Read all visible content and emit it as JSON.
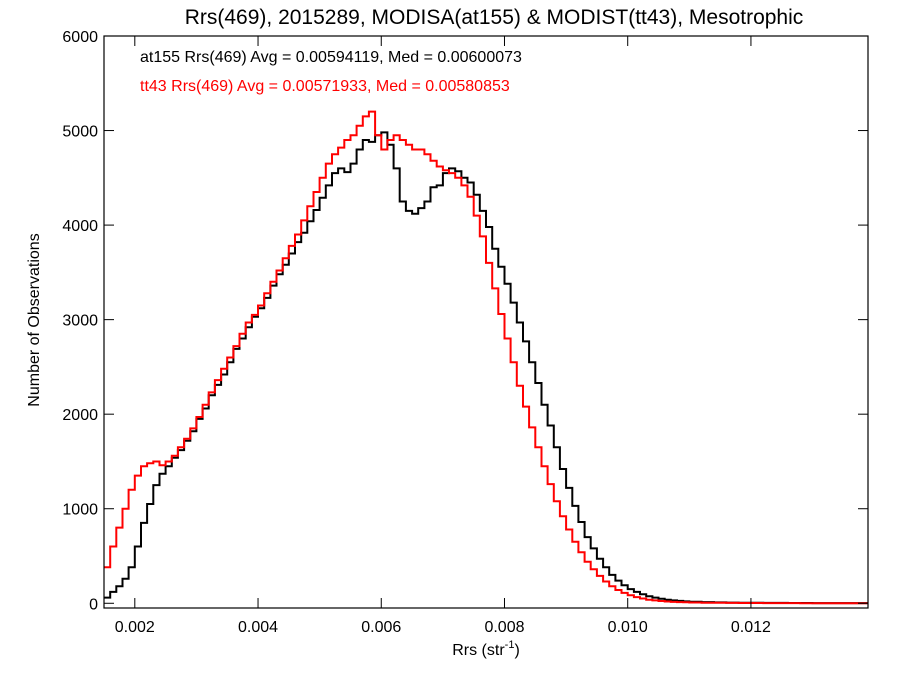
{
  "chart_data": {
    "type": "line",
    "title": "Rrs(469), 2015289, MODISA(at155) & MODIST(tt43), Mesotrophic",
    "xlabel": "Rrs (str",
    "xlabel_sup": "-1",
    "xlabel_close": ")",
    "ylabel": "Number of Observations",
    "xlim": [
      0.0015,
      0.0139
    ],
    "ylim": [
      -50,
      6000
    ],
    "x_ticks": [
      0.002,
      0.004,
      0.006,
      0.008,
      0.01,
      0.012
    ],
    "x_tick_labels": [
      "0.002",
      "0.004",
      "0.006",
      "0.008",
      "0.010",
      "0.012"
    ],
    "y_ticks": [
      0,
      1000,
      2000,
      3000,
      4000,
      5000,
      6000
    ],
    "y_tick_labels": [
      "0",
      "1000",
      "2000",
      "3000",
      "4000",
      "5000",
      "6000"
    ],
    "grid": false,
    "legend": "top-left",
    "annotations": [
      {
        "text": "at155 Rrs(469) Avg = 0.00594119, Med = 0.00600073",
        "color": "#000000"
      },
      {
        "text": "tt43 Rrs(469) Avg = 0.00571933, Med = 0.00580853",
        "color": "#ff0000"
      }
    ],
    "series": [
      {
        "color": "#000000",
        "x": [
          0.0015,
          0.0016,
          0.0017,
          0.0018,
          0.0019,
          0.002,
          0.0021,
          0.0022,
          0.0023,
          0.0024,
          0.0025,
          0.0026,
          0.0027,
          0.0028,
          0.0029,
          0.003,
          0.0031,
          0.0032,
          0.0033,
          0.0034,
          0.0035,
          0.0036,
          0.0037,
          0.0038,
          0.0039,
          0.004,
          0.0041,
          0.0042,
          0.0043,
          0.0044,
          0.0045,
          0.0046,
          0.0047,
          0.0048,
          0.0049,
          0.005,
          0.0051,
          0.0052,
          0.0053,
          0.0054,
          0.0055,
          0.0056,
          0.0057,
          0.0058,
          0.0059,
          0.006,
          0.0061,
          0.0062,
          0.0063,
          0.0064,
          0.0065,
          0.0066,
          0.0067,
          0.0068,
          0.0069,
          0.007,
          0.0071,
          0.0072,
          0.0073,
          0.0074,
          0.0075,
          0.0076,
          0.0077,
          0.0078,
          0.0079,
          0.008,
          0.0081,
          0.0082,
          0.0083,
          0.0084,
          0.0085,
          0.0086,
          0.0087,
          0.0088,
          0.0089,
          0.009,
          0.0091,
          0.0092,
          0.0093,
          0.0094,
          0.0095,
          0.0096,
          0.0097,
          0.0098,
          0.0099,
          0.01,
          0.0101,
          0.0102,
          0.0103,
          0.0104,
          0.0105,
          0.0106,
          0.0107,
          0.0108,
          0.0109,
          0.011,
          0.0112,
          0.0114,
          0.0116,
          0.0118,
          0.012,
          0.0122,
          0.0124,
          0.0126,
          0.0128,
          0.013,
          0.0132,
          0.0134,
          0.0136,
          0.0139
        ],
        "y": [
          60,
          120,
          180,
          260,
          380,
          600,
          850,
          1050,
          1250,
          1370,
          1450,
          1540,
          1620,
          1720,
          1820,
          1950,
          2060,
          2200,
          2310,
          2420,
          2550,
          2690,
          2800,
          2920,
          3030,
          3120,
          3230,
          3360,
          3480,
          3580,
          3700,
          3820,
          3920,
          4040,
          4160,
          4290,
          4420,
          4550,
          4600,
          4560,
          4650,
          4800,
          4900,
          4880,
          4950,
          4980,
          4850,
          4600,
          4250,
          4150,
          4120,
          4180,
          4250,
          4400,
          4420,
          4550,
          4600,
          4570,
          4500,
          4450,
          4320,
          4150,
          3980,
          3750,
          3560,
          3380,
          3180,
          2970,
          2770,
          2550,
          2330,
          2100,
          1880,
          1650,
          1420,
          1220,
          1030,
          860,
          700,
          580,
          470,
          380,
          300,
          240,
          190,
          150,
          120,
          95,
          75,
          60,
          48,
          38,
          30,
          25,
          20,
          16,
          12,
          9,
          7,
          6,
          5,
          4,
          4,
          3,
          3,
          2,
          2,
          2,
          2,
          2
        ]
      },
      {
        "color": "#ff0000",
        "x": [
          0.0015,
          0.0016,
          0.0017,
          0.0018,
          0.0019,
          0.002,
          0.0021,
          0.0022,
          0.0023,
          0.0024,
          0.0025,
          0.0026,
          0.0027,
          0.0028,
          0.0029,
          0.003,
          0.0031,
          0.0032,
          0.0033,
          0.0034,
          0.0035,
          0.0036,
          0.0037,
          0.0038,
          0.0039,
          0.004,
          0.0041,
          0.0042,
          0.0043,
          0.0044,
          0.0045,
          0.0046,
          0.0047,
          0.0048,
          0.0049,
          0.005,
          0.0051,
          0.0052,
          0.0053,
          0.0054,
          0.0055,
          0.0056,
          0.0057,
          0.0058,
          0.0059,
          0.006,
          0.0061,
          0.0062,
          0.0063,
          0.0064,
          0.0065,
          0.0066,
          0.0067,
          0.0068,
          0.0069,
          0.007,
          0.0071,
          0.0072,
          0.0073,
          0.0074,
          0.0075,
          0.0076,
          0.0077,
          0.0078,
          0.0079,
          0.008,
          0.0081,
          0.0082,
          0.0083,
          0.0084,
          0.0085,
          0.0086,
          0.0087,
          0.0088,
          0.0089,
          0.009,
          0.0091,
          0.0092,
          0.0093,
          0.0094,
          0.0095,
          0.0096,
          0.0097,
          0.0098,
          0.0099,
          0.01,
          0.0101,
          0.0102,
          0.0103,
          0.0104,
          0.0105,
          0.0106,
          0.0107,
          0.0108,
          0.0109,
          0.011,
          0.0112,
          0.0114,
          0.0116,
          0.0118,
          0.012,
          0.0122,
          0.0124,
          0.0126,
          0.0128,
          0.013,
          0.0132,
          0.0134,
          0.0136,
          0.0139
        ],
        "y": [
          380,
          600,
          800,
          1000,
          1200,
          1350,
          1450,
          1480,
          1500,
          1460,
          1500,
          1560,
          1650,
          1740,
          1850,
          1970,
          2100,
          2230,
          2360,
          2480,
          2600,
          2720,
          2850,
          2970,
          3050,
          3150,
          3280,
          3400,
          3520,
          3650,
          3780,
          3900,
          4050,
          4200,
          4350,
          4500,
          4650,
          4750,
          4820,
          4900,
          4950,
          5050,
          5150,
          5200,
          4950,
          4800,
          4900,
          4950,
          4900,
          4850,
          4800,
          4800,
          4750,
          4680,
          4620,
          4580,
          4550,
          4500,
          4420,
          4300,
          4100,
          3880,
          3600,
          3330,
          3060,
          2800,
          2550,
          2300,
          2080,
          1860,
          1650,
          1450,
          1260,
          1080,
          920,
          780,
          650,
          540,
          440,
          360,
          290,
          230,
          180,
          140,
          110,
          85,
          65,
          50,
          38,
          30,
          24,
          19,
          15,
          12,
          10,
          8,
          6,
          5,
          4,
          3,
          3,
          2,
          2,
          2,
          1,
          1,
          1,
          1,
          1,
          1
        ]
      }
    ]
  }
}
